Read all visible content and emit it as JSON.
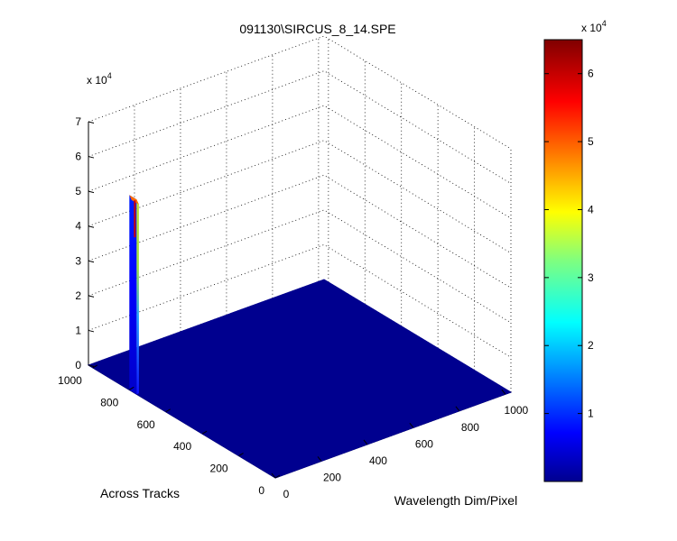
{
  "chart_data": {
    "type": "surface",
    "title": "091130\\SIRCUS_8_14.SPE",
    "xlabel": "Wavelength Dim/Pixel",
    "ylabel": "Across Tracks",
    "zlabel": "",
    "x_range": [
      0,
      1024
    ],
    "y_range": [
      0,
      1024
    ],
    "z_range": [
      0,
      70000
    ],
    "z_scale_label": "x 10",
    "z_scale_exponent": "4",
    "x_ticks": [
      0,
      200,
      400,
      600,
      800,
      1000
    ],
    "y_ticks": [
      0,
      200,
      400,
      600,
      800,
      1000
    ],
    "z_ticks": [
      0,
      10000,
      20000,
      30000,
      40000,
      50000,
      60000,
      70000
    ],
    "z_tick_labels": [
      "0",
      "1",
      "2",
      "3",
      "4",
      "5",
      "6",
      "7"
    ],
    "baseline_value": 0,
    "peak": {
      "x_range": [
        0,
        10
      ],
      "y_range": [
        760,
        800
      ],
      "z_max": 56000
    },
    "colormap": "jet",
    "grid": true,
    "colorbar": {
      "range": [
        0,
        65000
      ],
      "ticks": [
        10000,
        20000,
        30000,
        40000,
        50000,
        60000
      ],
      "tick_labels": [
        "1",
        "2",
        "3",
        "4",
        "5",
        "6"
      ],
      "scale_label": "x 10",
      "scale_exponent": "4",
      "placement": "right"
    }
  }
}
